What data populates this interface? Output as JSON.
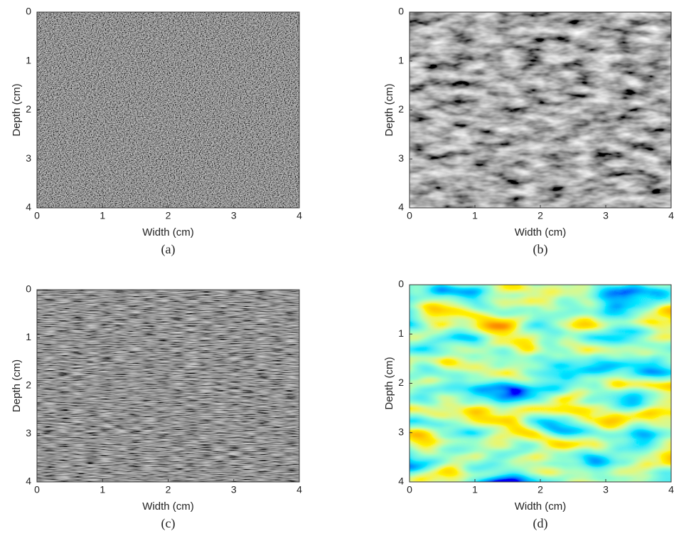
{
  "chart_data": [
    {
      "type": "image",
      "colormap": "gray",
      "xlabel": "Width (cm)",
      "ylabel": "Depth (cm)",
      "caption": "(a)",
      "xlim": [
        0,
        4
      ],
      "ylim": [
        0,
        4
      ],
      "y_inverted": true,
      "xticks": [
        0,
        1,
        2,
        3,
        4
      ],
      "yticks": [
        0,
        1,
        2,
        3,
        4
      ]
    },
    {
      "type": "image",
      "colormap": "gray",
      "xlabel": "Width (cm)",
      "ylabel": "Depth (cm)",
      "caption": "(b)",
      "xlim": [
        0,
        4
      ],
      "ylim": [
        0,
        4
      ],
      "y_inverted": true,
      "xticks": [
        0,
        1,
        2,
        3,
        4
      ],
      "yticks": [
        0,
        1,
        2,
        3,
        4
      ]
    },
    {
      "type": "image",
      "colormap": "gray",
      "xlabel": "Width (cm)",
      "ylabel": "Depth (cm)",
      "caption": "(c)",
      "xlim": [
        0,
        4
      ],
      "ylim": [
        0,
        4
      ],
      "y_inverted": true,
      "xticks": [
        0,
        1,
        2,
        3,
        4
      ],
      "yticks": [
        0,
        1,
        2,
        3,
        4
      ]
    },
    {
      "type": "image",
      "colormap": "jet",
      "xlabel": "Width (cm)",
      "ylabel": "Depth (cm)",
      "caption": "(d)",
      "xlim": [
        0,
        4
      ],
      "ylim": [
        0,
        4
      ],
      "y_inverted": true,
      "xticks": [
        0,
        1,
        2,
        3,
        4
      ],
      "yticks": [
        0,
        1,
        2,
        3,
        4
      ]
    }
  ]
}
